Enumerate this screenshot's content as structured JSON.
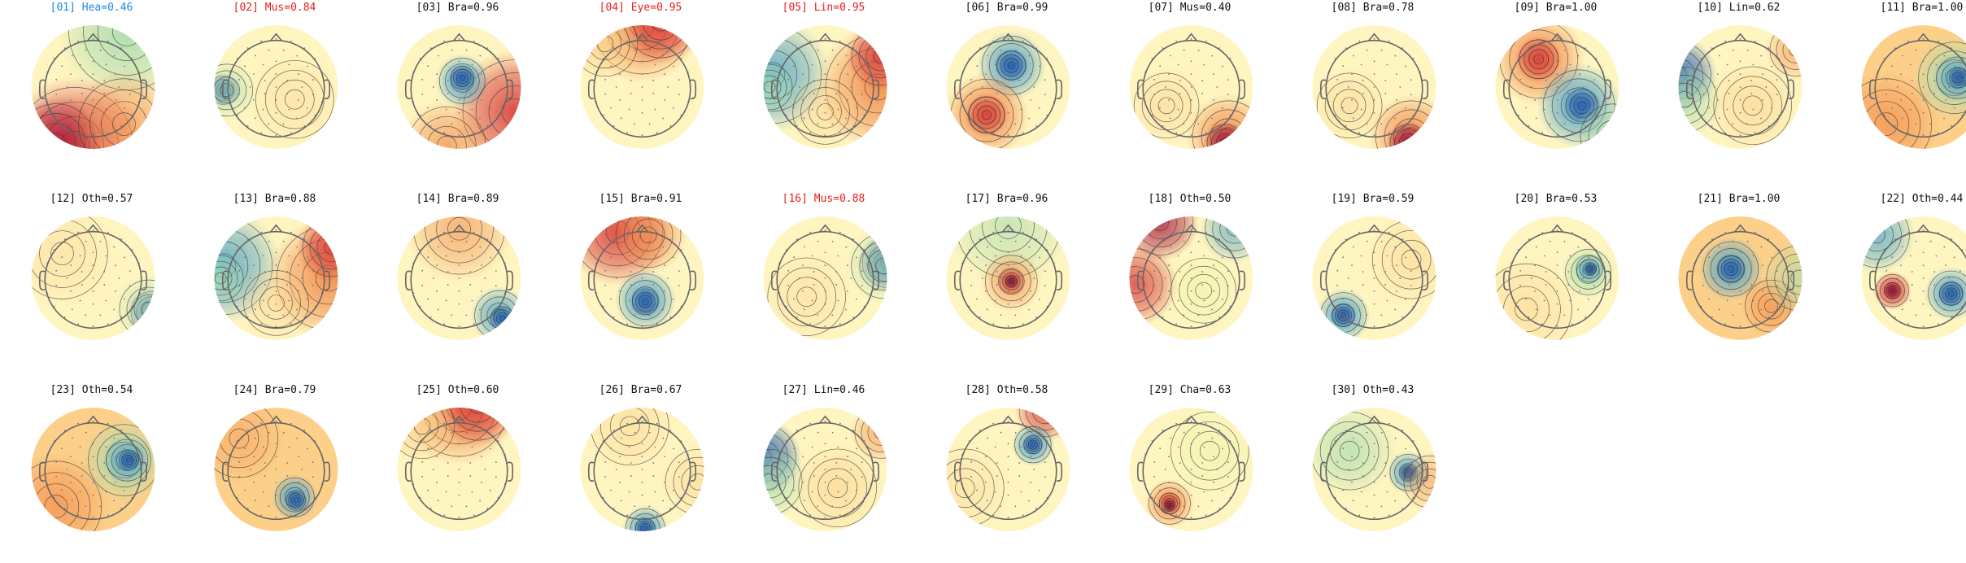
{
  "figure": {
    "colors": {
      "title_default": "#111111",
      "title_flagged": "#e8201c",
      "title_selected": "#1e88e5",
      "outline": "#666666",
      "contour": "#333333",
      "sensor": "#777777",
      "colormap": [
        "#2a64b4",
        "#5aa8c8",
        "#a8dcb0",
        "#e8f5a8",
        "#fff5c0",
        "#fdd08a",
        "#f28a4a",
        "#d83c3c",
        "#a8163c"
      ]
    },
    "components": [
      {
        "label": "[01] Hea=0.46",
        "status": "selected",
        "pattern": "frontal-green-occipital-red"
      },
      {
        "label": "[02] Mus=0.84",
        "status": "flagged",
        "pattern": "left-temporal-focal"
      },
      {
        "label": "[03] Bra=0.96",
        "status": "normal",
        "pattern": "central-blue-ring-red"
      },
      {
        "label": "[04] Eye=0.95",
        "status": "flagged",
        "pattern": "frontal-red"
      },
      {
        "label": "[05] Lin=0.95",
        "status": "flagged",
        "pattern": "left-blue-right-red"
      },
      {
        "label": "[06] Bra=0.99",
        "status": "normal",
        "pattern": "dipole-front-blue-back-red"
      },
      {
        "label": "[07] Mus=0.40",
        "status": "normal",
        "pattern": "occipital-red-focal"
      },
      {
        "label": "[08] Bra=0.78",
        "status": "normal",
        "pattern": "occipital-red-focal"
      },
      {
        "label": "[09] Bra=1.00",
        "status": "normal",
        "pattern": "dipole-red-blue"
      },
      {
        "label": "[10] Lin=0.62",
        "status": "normal",
        "pattern": "left-edge-blue"
      },
      {
        "label": "[11] Bra=1.00",
        "status": "normal",
        "pattern": "right-blue-ring-red"
      },
      {
        "label": "[12] Oth=0.57",
        "status": "normal",
        "pattern": "right-lower-blue"
      },
      {
        "label": "[13] Bra=0.88",
        "status": "normal",
        "pattern": "left-blue-right-red"
      },
      {
        "label": "[14] Bra=0.89",
        "status": "normal",
        "pattern": "right-posterior-blue"
      },
      {
        "label": "[15] Bra=0.91",
        "status": "normal",
        "pattern": "frontal-red-posterior-blue"
      },
      {
        "label": "[16] Mus=0.88",
        "status": "flagged",
        "pattern": "right-edge-blue"
      },
      {
        "label": "[17] Bra=0.96",
        "status": "normal",
        "pattern": "central-red-focal"
      },
      {
        "label": "[18] Oth=0.50",
        "status": "normal",
        "pattern": "left-red-edge"
      },
      {
        "label": "[19] Bra=0.59",
        "status": "normal",
        "pattern": "left-posterior-blue"
      },
      {
        "label": "[20] Bra=0.53",
        "status": "normal",
        "pattern": "right-blue-focal"
      },
      {
        "label": "[21] Bra=1.00",
        "status": "normal",
        "pattern": "left-central-blue"
      },
      {
        "label": "[22] Oth=0.44",
        "status": "normal",
        "pattern": "red-left-blue-right"
      },
      {
        "label": "[23] Oth=0.54",
        "status": "normal",
        "pattern": "right-blue-ring-red"
      },
      {
        "label": "[24] Bra=0.79",
        "status": "normal",
        "pattern": "posterior-blue-focal"
      },
      {
        "label": "[25] Oth=0.60",
        "status": "normal",
        "pattern": "frontal-red"
      },
      {
        "label": "[26] Bra=0.67",
        "status": "normal",
        "pattern": "occipital-blue-focal"
      },
      {
        "label": "[27] Lin=0.46",
        "status": "normal",
        "pattern": "left-edge-blue"
      },
      {
        "label": "[28] Oth=0.58",
        "status": "normal",
        "pattern": "right-frontal-blue"
      },
      {
        "label": "[29] Cha=0.63",
        "status": "normal",
        "pattern": "left-posterior-red"
      },
      {
        "label": "[30] Oth=0.43",
        "status": "normal",
        "pattern": "right-central-blue"
      }
    ]
  }
}
